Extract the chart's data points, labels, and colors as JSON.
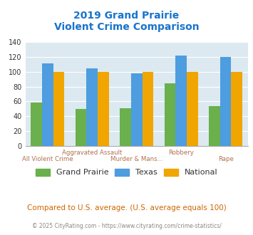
{
  "title_line1": "2019 Grand Prairie",
  "title_line2": "Violent Crime Comparison",
  "title_color": "#1874CD",
  "grand_prairie": [
    58,
    50,
    51,
    84,
    54
  ],
  "texas": [
    111,
    105,
    98,
    122,
    120
  ],
  "national": [
    100,
    100,
    100,
    100,
    100
  ],
  "gp_color": "#6ab04c",
  "texas_color": "#4d9de0",
  "national_color": "#f0a500",
  "ylim": [
    0,
    140
  ],
  "yticks": [
    0,
    20,
    40,
    60,
    80,
    100,
    120,
    140
  ],
  "plot_bg": "#dce9f0",
  "footer_text": "Compared to U.S. average. (U.S. average equals 100)",
  "footer_color": "#cc6600",
  "copyright_text": "© 2025 CityRating.com - https://www.cityrating.com/crime-statistics/",
  "copyright_color": "#888888",
  "legend_labels": [
    "Grand Prairie",
    "Texas",
    "National"
  ],
  "top_labels": {
    "1": "Aggravated Assault",
    "3": "Robbery"
  },
  "bot_labels": {
    "0": "All Violent Crime",
    "2": "Murder & Mans...",
    "4": "Rape"
  },
  "xlabel_color": "#b07050",
  "bar_width": 0.25,
  "n_categories": 5
}
